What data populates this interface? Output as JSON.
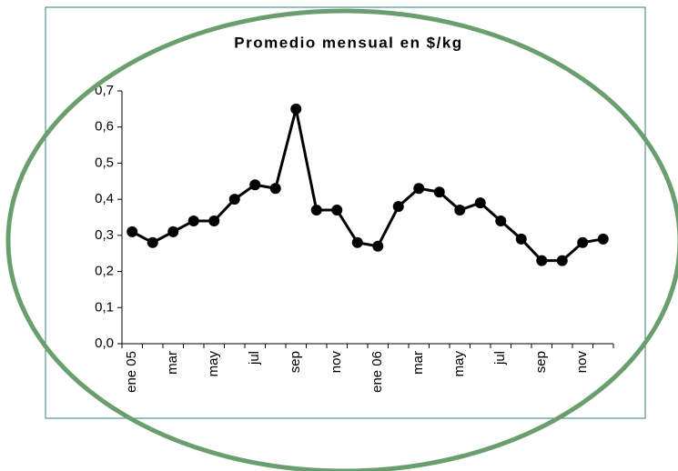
{
  "chart_data": {
    "type": "line",
    "title": "Promedio mensual en $/kg",
    "categories": [
      "ene 05",
      null,
      "mar",
      null,
      "may",
      null,
      "jul",
      null,
      "sep",
      null,
      "nov",
      null,
      "ene 06",
      null,
      "mar",
      null,
      "may",
      null,
      "jul",
      null,
      "sep",
      null,
      "nov",
      null
    ],
    "series": [
      {
        "name": "Promedio mensual",
        "color": "#000000",
        "values": [
          0.31,
          0.28,
          0.31,
          0.34,
          0.34,
          0.4,
          0.44,
          0.43,
          0.65,
          0.37,
          0.37,
          0.28,
          0.27,
          0.38,
          0.43,
          0.42,
          0.37,
          0.39,
          0.34,
          0.29,
          0.23,
          0.23,
          0.28,
          0.29
        ]
      }
    ],
    "ylim": [
      0,
      0.7
    ],
    "yticks": [
      {
        "value": 0,
        "label": "0,0"
      },
      {
        "value": 0.1,
        "label": "0,1"
      },
      {
        "value": 0.2,
        "label": "0,2"
      },
      {
        "value": 0.3,
        "label": "0,3"
      },
      {
        "value": 0.4,
        "label": "0,4"
      },
      {
        "value": 0.5,
        "label": "0,5"
      },
      {
        "value": 0.6,
        "label": "0,6"
      },
      {
        "value": 0.7,
        "label": "0,7"
      }
    ],
    "grid": false
  }
}
